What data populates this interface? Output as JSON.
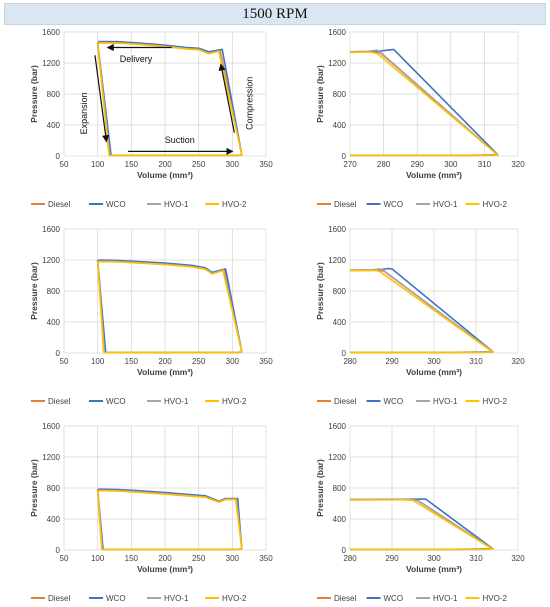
{
  "header": {
    "title": "1500 RPM"
  },
  "colors": {
    "Diesel": "#ed7d31",
    "WCO": "#4472c4",
    "HVO-1": "#a5a5a5",
    "HVO-2": "#ffc000",
    "grid": "#d9d9d9",
    "arrow": "#111111"
  },
  "chart_data": [
    {
      "type": "line",
      "xlabel": "Volume (mm³)",
      "ylabel": "Pressure (bar)",
      "xlim": [
        50,
        350
      ],
      "ylim": [
        0,
        1600
      ],
      "xticks": [
        50,
        100,
        150,
        200,
        250,
        300,
        350
      ],
      "yticks": [
        0,
        400,
        800,
        1200,
        1600
      ],
      "grid": true,
      "legend": "bottom",
      "annotations": [
        {
          "text": "Delivery",
          "arrow_from": [
            210,
            1400
          ],
          "arrow_to": [
            115,
            1400
          ]
        },
        {
          "text": "Expansion",
          "arrow_from": [
            96,
            1300
          ],
          "arrow_to": [
            113,
            190
          ]
        },
        {
          "text": "Suction",
          "arrow_from": [
            145,
            60
          ],
          "arrow_to": [
            300,
            60
          ]
        },
        {
          "text": "Compression",
          "arrow_from": [
            303,
            300
          ],
          "arrow_to": [
            283,
            1180
          ]
        }
      ],
      "series": [
        {
          "name": "Diesel",
          "x": [
            118,
            306,
            314,
            282,
            265,
            250,
            232,
            200,
            160,
            130,
            102,
            100,
            118
          ],
          "y": [
            5,
            5,
            15,
            1360,
            1330,
            1380,
            1390,
            1420,
            1450,
            1465,
            1470,
            1440,
            5
          ]
        },
        {
          "name": "WCO",
          "x": [
            120,
            306,
            314,
            285,
            265,
            250,
            232,
            200,
            160,
            130,
            102,
            100,
            120
          ],
          "y": [
            5,
            5,
            15,
            1375,
            1345,
            1390,
            1400,
            1430,
            1460,
            1475,
            1478,
            1450,
            5
          ]
        },
        {
          "name": "HVO-1",
          "x": [
            118,
            306,
            314,
            281,
            265,
            250,
            232,
            200,
            160,
            130,
            102,
            100,
            118
          ],
          "y": [
            5,
            5,
            15,
            1355,
            1325,
            1375,
            1385,
            1415,
            1445,
            1460,
            1465,
            1435,
            5
          ]
        },
        {
          "name": "HVO-2",
          "x": [
            117,
            306,
            314,
            280,
            265,
            250,
            232,
            200,
            160,
            130,
            102,
            100,
            117
          ],
          "y": [
            5,
            5,
            15,
            1350,
            1320,
            1370,
            1380,
            1410,
            1440,
            1455,
            1460,
            1430,
            5
          ]
        }
      ]
    },
    {
      "type": "line",
      "xlabel": "Volume (mm³)",
      "ylabel": "Pressure (bar)",
      "xlim": [
        270,
        320
      ],
      "ylim": [
        0,
        1600
      ],
      "xticks": [
        270,
        280,
        290,
        300,
        310,
        320
      ],
      "yticks": [
        0,
        400,
        800,
        1200,
        1600
      ],
      "grid": true,
      "legend": "bottom",
      "series": [
        {
          "name": "Diesel",
          "x": [
            270,
            276,
            279,
            314,
            300,
            270
          ],
          "y": [
            1340,
            1345,
            1330,
            10,
            5,
            5
          ]
        },
        {
          "name": "WCO",
          "x": [
            270,
            278,
            282,
            283,
            314,
            300,
            270
          ],
          "y": [
            1345,
            1350,
            1370,
            1375,
            15,
            5,
            5
          ]
        },
        {
          "name": "HVO-1",
          "x": [
            270,
            275,
            278,
            279,
            314,
            300,
            270
          ],
          "y": [
            1345,
            1350,
            1365,
            1340,
            10,
            5,
            5
          ]
        },
        {
          "name": "HVO-2",
          "x": [
            270,
            276,
            278,
            314,
            300,
            270
          ],
          "y": [
            1335,
            1340,
            1325,
            10,
            5,
            5
          ]
        }
      ]
    },
    {
      "type": "line",
      "xlabel": "Volume (mm³)",
      "ylabel": "Pressure (bar)",
      "xlim": [
        50,
        350
      ],
      "ylim": [
        0,
        1600
      ],
      "xticks": [
        50,
        100,
        150,
        200,
        250,
        300,
        350
      ],
      "yticks": [
        0,
        400,
        800,
        1200,
        1600
      ],
      "grid": true,
      "legend": "bottom",
      "series": [
        {
          "name": "Diesel",
          "x": [
            110,
            306,
            314,
            288,
            270,
            260,
            240,
            200,
            160,
            130,
            102,
            100,
            110
          ],
          "y": [
            5,
            5,
            15,
            1075,
            1030,
            1090,
            1120,
            1150,
            1170,
            1185,
            1190,
            1180,
            5
          ]
        },
        {
          "name": "WCO",
          "x": [
            112,
            306,
            314,
            290,
            270,
            260,
            240,
            200,
            160,
            130,
            102,
            100,
            112
          ],
          "y": [
            5,
            5,
            15,
            1085,
            1040,
            1100,
            1130,
            1160,
            1180,
            1195,
            1200,
            1190,
            5
          ]
        },
        {
          "name": "HVO-1",
          "x": [
            110,
            306,
            314,
            287,
            270,
            260,
            240,
            200,
            160,
            130,
            102,
            100,
            110
          ],
          "y": [
            5,
            5,
            15,
            1070,
            1025,
            1085,
            1115,
            1145,
            1165,
            1180,
            1185,
            1175,
            5
          ]
        },
        {
          "name": "HVO-2",
          "x": [
            109,
            306,
            314,
            286,
            270,
            260,
            240,
            200,
            160,
            130,
            102,
            100,
            109
          ],
          "y": [
            5,
            5,
            15,
            1065,
            1020,
            1080,
            1110,
            1140,
            1160,
            1175,
            1180,
            1170,
            5
          ]
        }
      ]
    },
    {
      "type": "line",
      "xlabel": "Volume (mm³)",
      "ylabel": "Pressure (bar)",
      "xlim": [
        280,
        320
      ],
      "ylim": [
        0,
        1600
      ],
      "xticks": [
        280,
        290,
        300,
        310,
        320
      ],
      "yticks": [
        0,
        400,
        800,
        1200,
        1600
      ],
      "grid": true,
      "legend": "bottom",
      "series": [
        {
          "name": "Diesel",
          "x": [
            280,
            286,
            288,
            314,
            300,
            280
          ],
          "y": [
            1065,
            1068,
            1060,
            10,
            5,
            5
          ]
        },
        {
          "name": "WCO",
          "x": [
            280,
            287,
            289,
            290,
            314,
            300,
            280
          ],
          "y": [
            1068,
            1072,
            1090,
            1085,
            15,
            5,
            5
          ]
        },
        {
          "name": "HVO-1",
          "x": [
            280,
            285,
            287,
            288,
            314,
            300,
            280
          ],
          "y": [
            1068,
            1072,
            1085,
            1065,
            10,
            5,
            5
          ]
        },
        {
          "name": "HVO-2",
          "x": [
            280,
            286,
            287,
            314,
            300,
            280
          ],
          "y": [
            1062,
            1065,
            1055,
            10,
            5,
            5
          ]
        }
      ]
    },
    {
      "type": "line",
      "xlabel": "Volume (mm³)",
      "ylabel": "Pressure (bar)",
      "xlim": [
        50,
        350
      ],
      "ylim": [
        0,
        1600
      ],
      "xticks": [
        50,
        100,
        150,
        200,
        250,
        300,
        350
      ],
      "yticks": [
        0,
        400,
        800,
        1200,
        1600
      ],
      "grid": true,
      "legend": "bottom",
      "series": [
        {
          "name": "Diesel",
          "x": [
            107,
            306,
            314,
            306,
            290,
            280,
            260,
            200,
            160,
            130,
            102,
            100,
            107
          ],
          "y": [
            5,
            5,
            15,
            660,
            660,
            625,
            690,
            730,
            755,
            770,
            775,
            760,
            5
          ]
        },
        {
          "name": "WCO",
          "x": [
            108,
            306,
            314,
            308,
            290,
            280,
            260,
            200,
            160,
            130,
            102,
            100,
            108
          ],
          "y": [
            5,
            5,
            15,
            665,
            665,
            630,
            700,
            740,
            765,
            780,
            785,
            770,
            5
          ]
        },
        {
          "name": "HVO-1",
          "x": [
            107,
            306,
            314,
            306,
            290,
            280,
            260,
            200,
            160,
            130,
            102,
            100,
            107
          ],
          "y": [
            5,
            5,
            15,
            655,
            655,
            620,
            685,
            725,
            750,
            765,
            770,
            755,
            5
          ]
        },
        {
          "name": "HVO-2",
          "x": [
            106,
            306,
            314,
            305,
            290,
            280,
            260,
            200,
            160,
            130,
            102,
            100,
            106
          ],
          "y": [
            5,
            5,
            15,
            650,
            650,
            615,
            680,
            720,
            745,
            760,
            765,
            750,
            5
          ]
        }
      ]
    },
    {
      "type": "line",
      "xlabel": "Volume (mm³)",
      "ylabel": "Pressure (bar)",
      "xlim": [
        280,
        320
      ],
      "ylim": [
        0,
        1600
      ],
      "xticks": [
        280,
        290,
        300,
        310,
        320
      ],
      "yticks": [
        0,
        400,
        800,
        1200,
        1600
      ],
      "grid": true,
      "legend": "bottom",
      "series": [
        {
          "name": "Diesel",
          "x": [
            280,
            294,
            296,
            314,
            300,
            280
          ],
          "y": [
            648,
            650,
            645,
            10,
            5,
            5
          ]
        },
        {
          "name": "WCO",
          "x": [
            280,
            296,
            298,
            314,
            300,
            280
          ],
          "y": [
            650,
            655,
            658,
            15,
            5,
            5
          ]
        },
        {
          "name": "HVO-1",
          "x": [
            280,
            294,
            296,
            314,
            300,
            280
          ],
          "y": [
            650,
            652,
            640,
            10,
            5,
            5
          ]
        },
        {
          "name": "HVO-2",
          "x": [
            280,
            293,
            295,
            314,
            300,
            280
          ],
          "y": [
            645,
            648,
            640,
            10,
            5,
            5
          ]
        }
      ]
    }
  ]
}
